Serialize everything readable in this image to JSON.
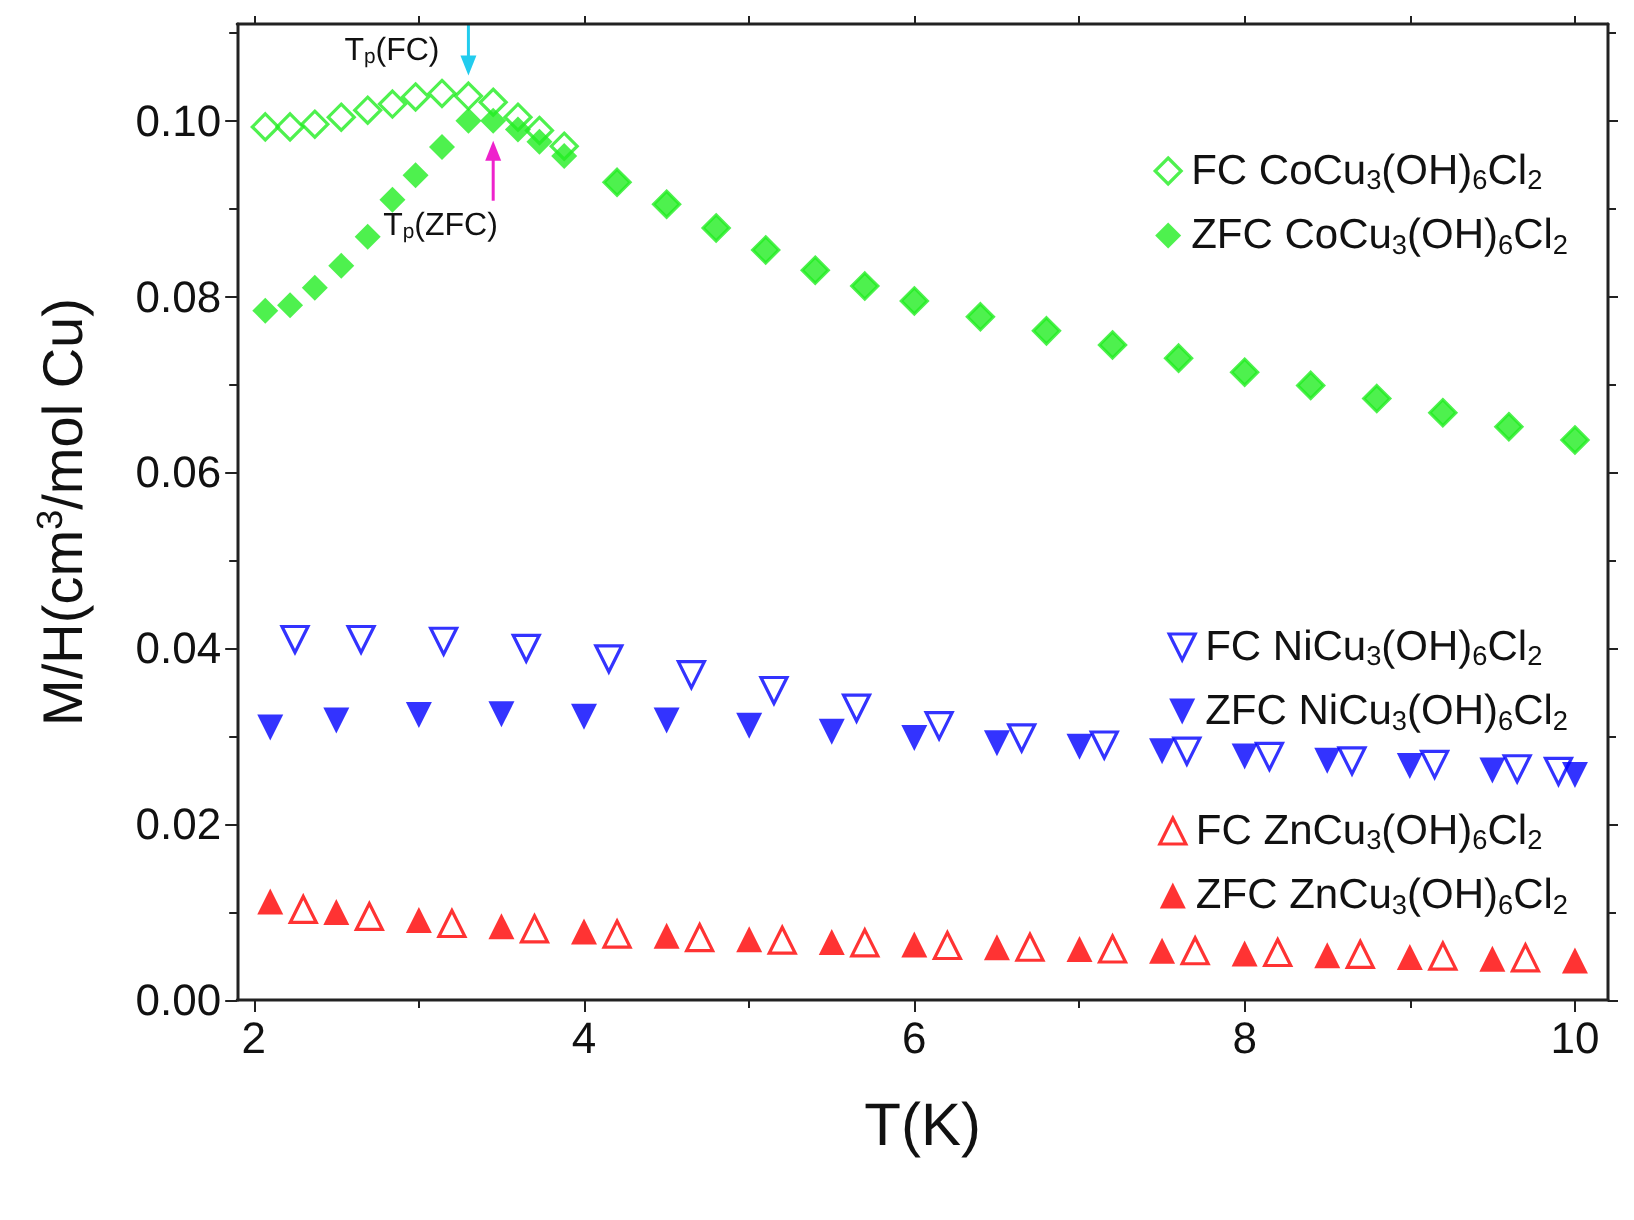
{
  "chart_data": {
    "type": "scatter",
    "xlabel": "T(K)",
    "ylabel": "M/H(cm$^{3}$/mol Cu)",
    "xlim": [
      1.9,
      10.2
    ],
    "xticks": [
      2,
      4,
      6,
      8,
      10
    ],
    "ylim": [
      0,
      0.111
    ],
    "yticks": [
      {
        "value": 0,
        "label": "0.00"
      },
      {
        "value": 0.02,
        "label": "0.02"
      },
      {
        "value": 0.04,
        "label": "0.04"
      },
      {
        "value": 0.06,
        "label": "0.06"
      },
      {
        "value": 0.08,
        "label": "0.08"
      },
      {
        "value": 0.1,
        "label": "0.10"
      }
    ],
    "grid": false,
    "legend": "right",
    "annotations": [
      {
        "text": "T$_{p}$(FC)",
        "x": 3.3,
        "y": 0.1031
      },
      {
        "text": "T$_{p}$(ZFC)",
        "x": 3.45,
        "y": 0.1
      }
    ],
    "series": [
      {
        "name": "FC CoCu$_{3}$(OH)$_{6}$Cl$_{2}$",
        "color": "#22ee22",
        "marker": "diamond",
        "x": [
          2.07,
          2.22,
          2.37,
          2.53,
          2.69,
          2.84,
          2.98,
          3.14,
          3.3,
          3.45,
          3.6,
          3.73,
          3.88,
          4.2,
          4.5,
          4.8,
          5.1,
          5.4,
          5.7,
          6.0,
          6.4,
          6.8,
          7.2,
          7.6,
          8.0,
          8.4,
          8.8,
          9.2,
          9.6,
          10.0
        ],
        "values": [
          0.0993,
          0.0993,
          0.0996,
          0.1004,
          0.1012,
          0.1019,
          0.1027,
          0.1031,
          0.1028,
          0.1021,
          0.1004,
          0.0989,
          0.0971,
          0.093,
          0.0905,
          0.0878,
          0.0853,
          0.083,
          0.0812,
          0.0795,
          0.0777,
          0.0761,
          0.0745,
          0.073,
          0.0714,
          0.0699,
          0.0684,
          0.0668,
          0.0652,
          0.0637
        ]
      },
      {
        "name": "ZFC CoCu$_{3}$(OH)$_{6}$Cl$_{2}$",
        "color": "#22ee22",
        "marker": "diamond",
        "x": [
          2.07,
          2.22,
          2.37,
          2.53,
          2.69,
          2.84,
          2.98,
          3.14,
          3.3,
          3.45,
          3.6,
          3.73,
          3.88,
          4.2,
          4.5,
          4.8,
          5.1,
          5.4,
          5.7,
          6.0,
          6.4,
          6.8,
          7.2,
          7.6,
          8.0,
          8.4,
          8.8,
          9.2,
          9.6,
          10.0
        ],
        "values": [
          0.0784,
          0.079,
          0.081,
          0.0835,
          0.0868,
          0.091,
          0.0938,
          0.097,
          0.1,
          0.1,
          0.099,
          0.0976,
          0.096,
          0.093,
          0.0905,
          0.0878,
          0.0853,
          0.083,
          0.0812,
          0.0795,
          0.0777,
          0.0761,
          0.0745,
          0.073,
          0.0714,
          0.0699,
          0.0684,
          0.0668,
          0.0652,
          0.0637
        ]
      },
      {
        "name": "FC NiCu$_{3}$(OH)$_{6}$Cl$_{2}$",
        "color": "#0000ff",
        "marker": "triangle",
        "x": [
          2.25,
          2.65,
          3.15,
          3.65,
          4.15,
          4.65,
          5.15,
          5.65,
          6.15,
          6.65,
          7.15,
          7.65,
          8.15,
          8.65,
          9.15,
          9.65,
          9.9
        ],
        "values": [
          0.041,
          0.041,
          0.0408,
          0.04,
          0.0388,
          0.037,
          0.0352,
          0.0332,
          0.0312,
          0.0298,
          0.029,
          0.0283,
          0.0277,
          0.0272,
          0.0268,
          0.0263,
          0.026
        ]
      },
      {
        "name": "ZFC NiCu$_{3}$(OH)$_{6}$Cl$_{2}$",
        "color": "#0000ff",
        "marker": "triangle",
        "x": [
          2.1,
          2.5,
          3,
          3.5,
          4,
          4.5,
          5,
          5.5,
          6,
          6.5,
          7,
          7.5,
          8,
          8.5,
          9,
          9.5,
          10
        ],
        "values": [
          0.031,
          0.0318,
          0.0324,
          0.0325,
          0.0322,
          0.0318,
          0.0312,
          0.0305,
          0.0298,
          0.0292,
          0.0288,
          0.0283,
          0.0277,
          0.0272,
          0.0266,
          0.0261,
          0.0256
        ]
      },
      {
        "name": "FC ZnCu$_{3}$(OH)$_{6}$Cl$_{2}$",
        "color": "#ff0000",
        "marker": "triangle",
        "x": [
          2.3,
          2.7,
          3.2,
          3.7,
          4.2,
          4.7,
          5.2,
          5.7,
          6.2,
          6.7,
          7.2,
          7.7,
          8.2,
          8.7,
          9.2,
          9.7
        ],
        "values": [
          0.0103,
          0.0095,
          0.0087,
          0.0081,
          0.0075,
          0.0071,
          0.0068,
          0.0065,
          0.0062,
          0.006,
          0.0058,
          0.0056,
          0.0054,
          0.0052,
          0.005,
          0.0048
        ]
      },
      {
        "name": "ZFC ZnCu$_{3}$(OH)$_{6}$Cl$_{2}$",
        "color": "#ff0000",
        "marker": "triangle",
        "x": [
          2.1,
          2.5,
          3,
          3.5,
          4,
          4.5,
          5,
          5.5,
          6,
          6.5,
          7,
          7.5,
          8,
          8.5,
          9,
          9.5,
          10
        ],
        "values": [
          0.0112,
          0.01,
          0.0091,
          0.0084,
          0.0078,
          0.0073,
          0.0069,
          0.0066,
          0.0063,
          0.006,
          0.0058,
          0.0056,
          0.0053,
          0.0051,
          0.0049,
          0.0047,
          0.0045
        ]
      }
    ]
  }
}
